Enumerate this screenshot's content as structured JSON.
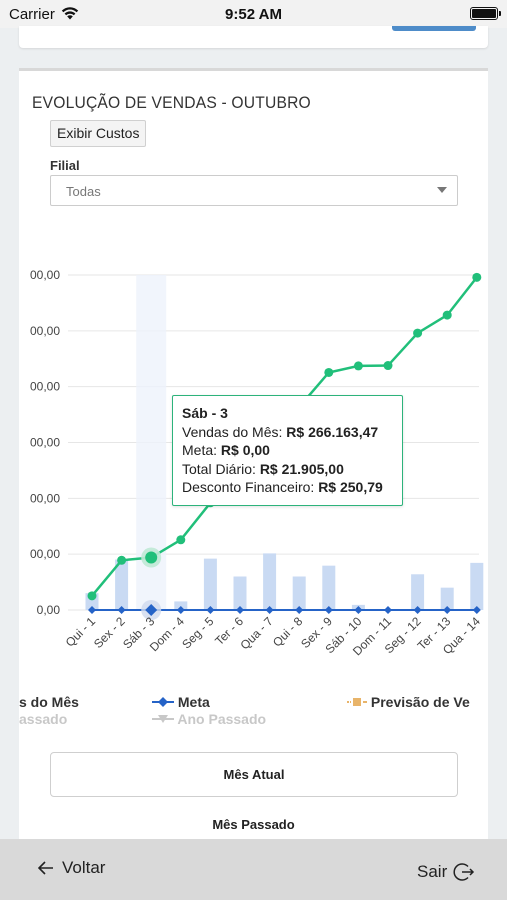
{
  "status_bar": {
    "carrier": "Carrier",
    "time": "9:52 AM",
    "battery_level": 1.0
  },
  "card": {
    "title": "EVOLUÇÃO DE VENDAS - OUTUBRO",
    "costs_button": "Exibir Custos",
    "filial_label": "Filial",
    "filial_value": "Todas"
  },
  "chart_data": {
    "type": "bar",
    "categories": [
      "Qui - 1",
      "Sex - 2",
      "Sáb - 3",
      "Dom - 4",
      "Seg - 5",
      "Ter - 6",
      "Qua - 7",
      "Qui - 8",
      "Sex - 9",
      "Sáb - 10",
      "Dom - 11",
      "Seg - 12",
      "Ter - 13",
      "Qua - 14"
    ],
    "y_tick_labels": [
      "00,00",
      "00,00",
      "00,00",
      "00,00",
      "00,00",
      "00,00",
      "0,00"
    ],
    "series": [
      {
        "name": "Total Diário",
        "kind": "bar",
        "color": "#c9daf3",
        "values": [
          15100,
          45200,
          21905,
          7700,
          46000,
          30000,
          50700,
          30000,
          39700,
          4600,
          0,
          32000,
          20000,
          42200
        ]
      },
      {
        "name": "Vendas do Mês",
        "kind": "line",
        "color": "#21bf7a",
        "values": [
          12700,
          44500,
          266163.47,
          62900,
          96000,
          117400,
          160000,
          181800,
          212700,
          218600,
          218900,
          248000,
          264100,
          297900
        ]
      },
      {
        "name": "Meta",
        "kind": "line",
        "color": "#2563c7",
        "values": [
          0,
          0,
          0,
          0,
          0,
          0,
          0,
          0,
          0,
          0,
          0,
          0,
          0,
          0
        ]
      }
    ],
    "tooltip": {
      "title": "Sáb - 3",
      "rows": [
        {
          "label": "Vendas do Mês:",
          "value": "R$ 266.163,47"
        },
        {
          "label": "Meta:",
          "value": "R$ 0,00"
        },
        {
          "label": "Total Diário:",
          "value": "R$ 21.905,00"
        },
        {
          "label": "Desconto Financeiro:",
          "value": "R$ 250,79"
        }
      ]
    },
    "legend": [
      {
        "label": "s do Mês",
        "color": "#21bf7a",
        "faded": false
      },
      {
        "label": "Meta",
        "color": "#2563c7",
        "faded": false
      },
      {
        "label": "Previsão de Ve",
        "color": "#e8b46a",
        "faded": false
      },
      {
        "label": "assado",
        "color": "#c8c8c8",
        "faded": true
      },
      {
        "label": "Ano Passado",
        "color": "#c8c8c8",
        "faded": true
      }
    ]
  },
  "buttons": {
    "current_month": "Mês Atual",
    "last_month": "Mês Passado"
  },
  "bottom_bar": {
    "back": "Voltar",
    "exit": "Sair"
  }
}
